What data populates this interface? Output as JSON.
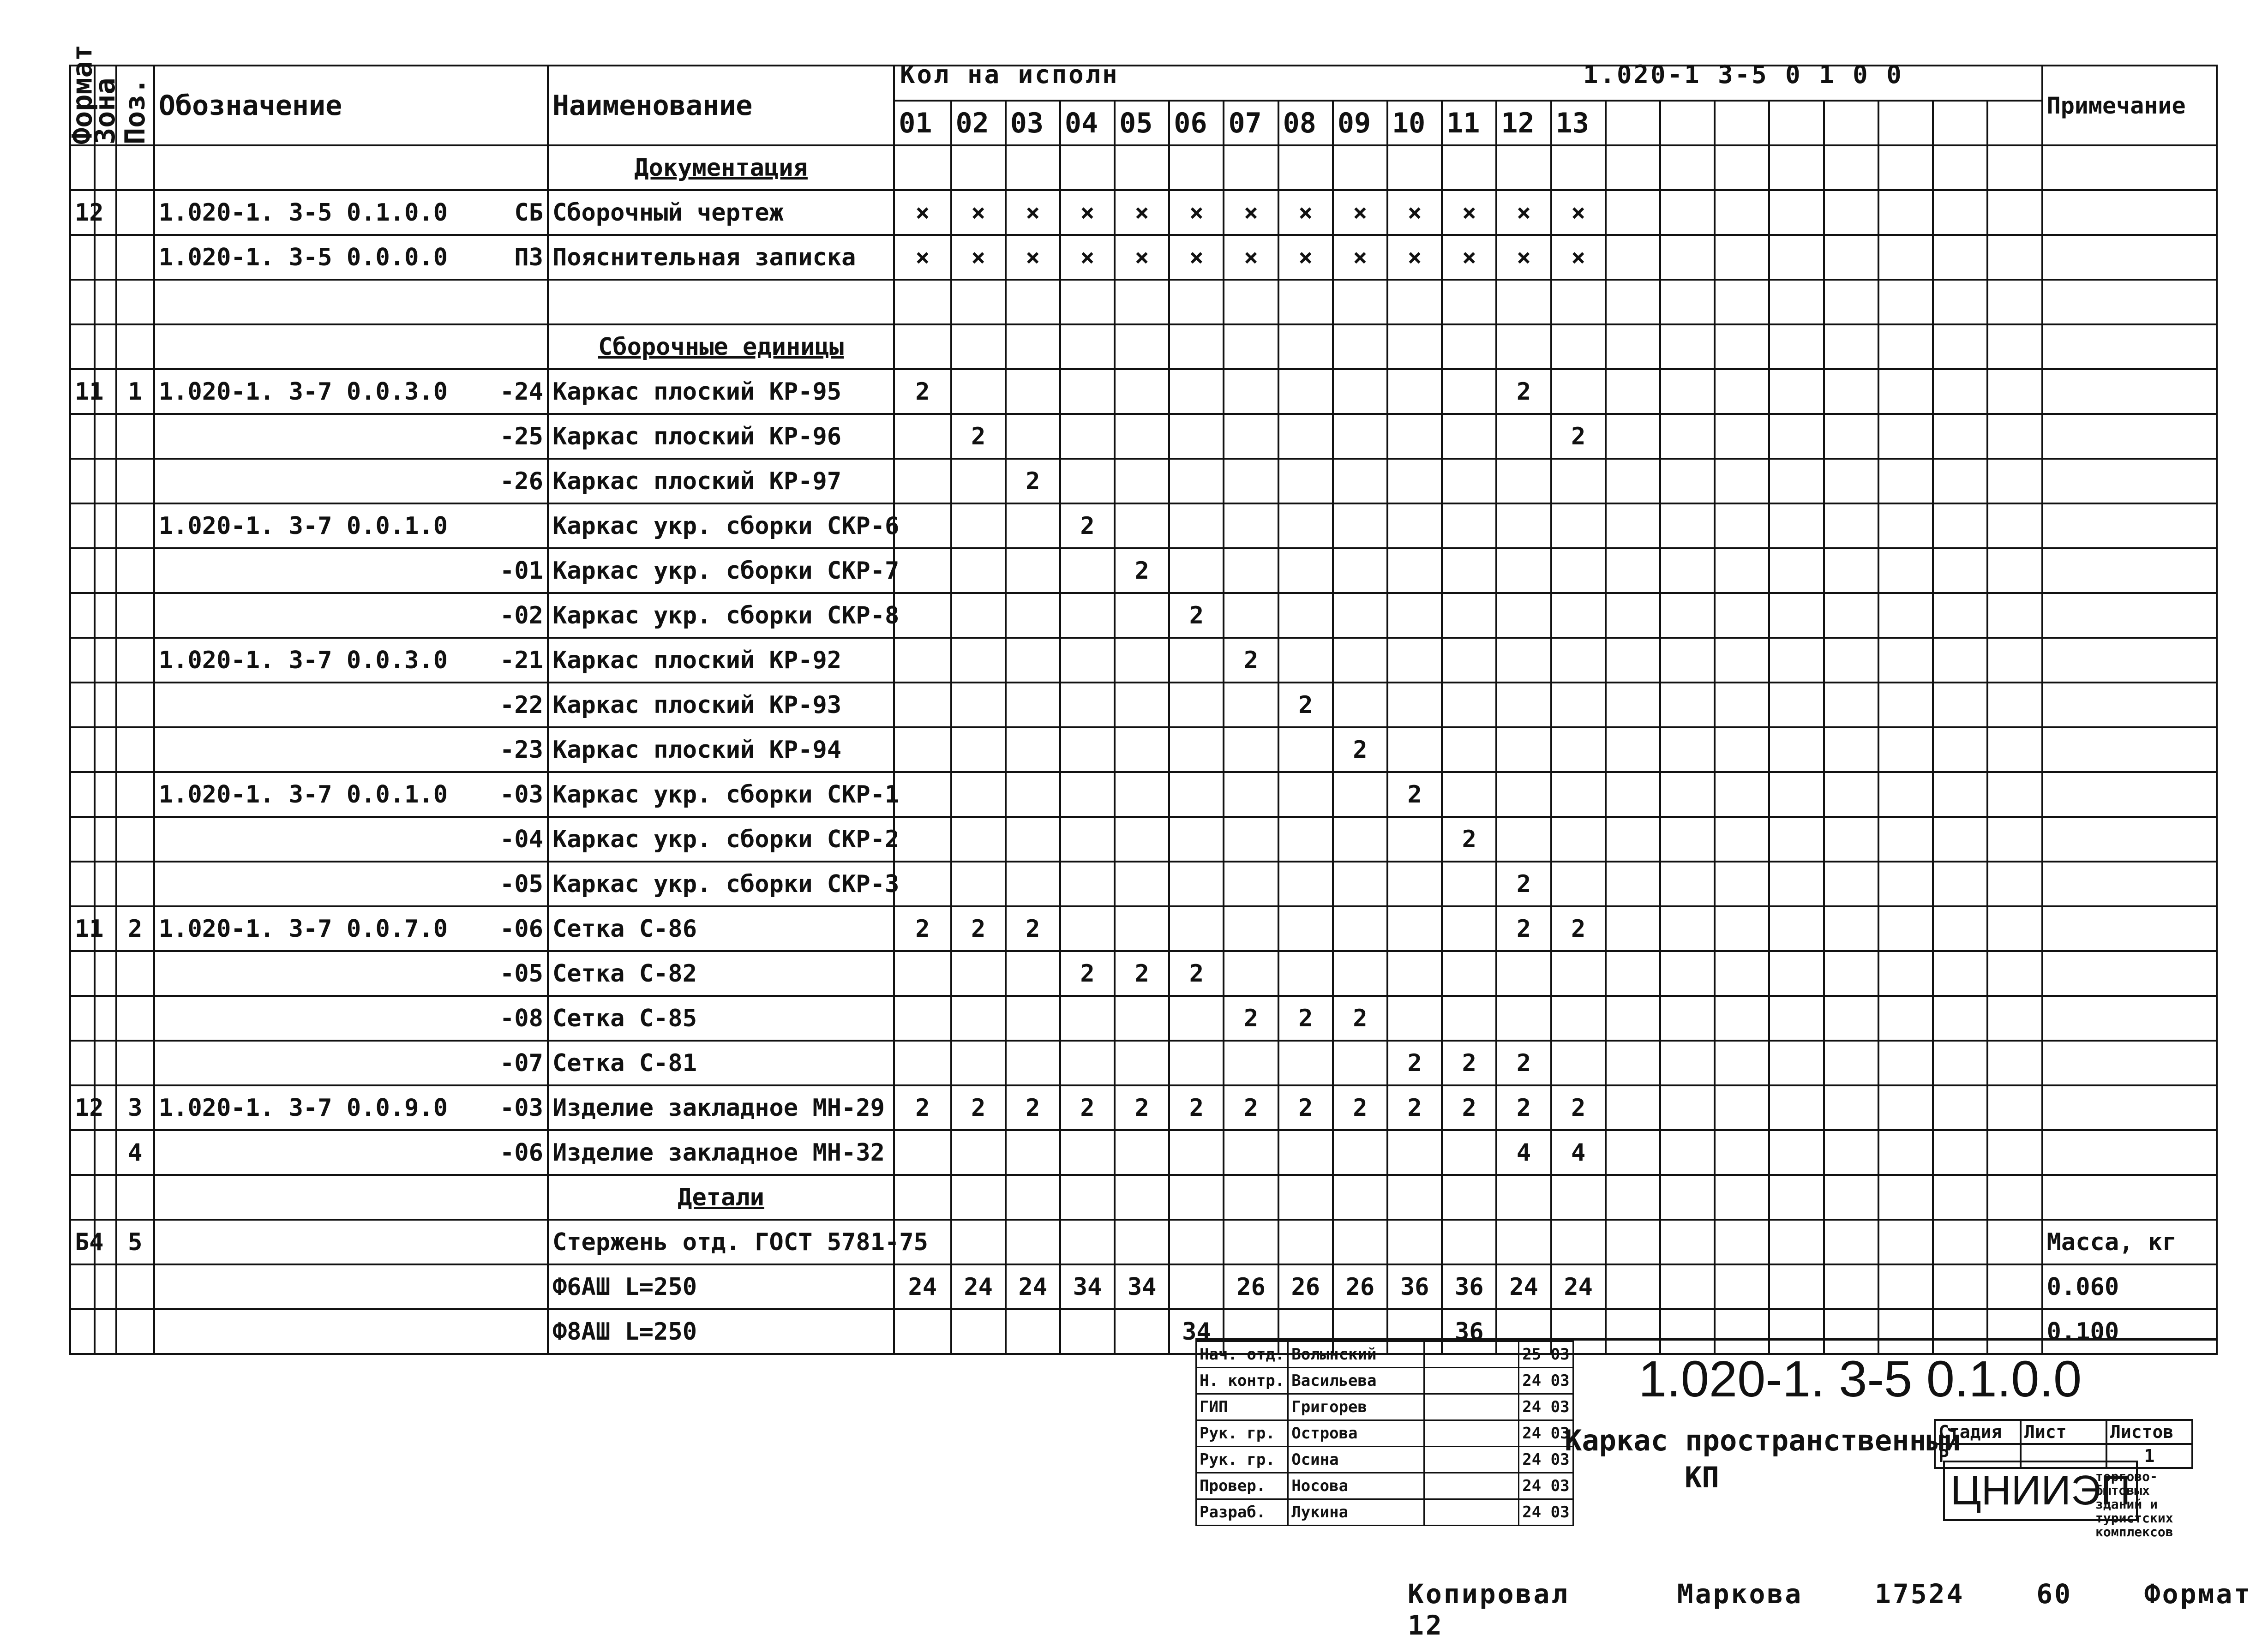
{
  "header": {
    "format_col": "Формат",
    "zone_col": "Зона",
    "pos_col": "Поз.",
    "designation": "Обозначение",
    "name": "Наименование",
    "qty_top": "Кол на исполн",
    "doc_code_top": "1.020-1 3-5 0 1 0 0",
    "note": "Примечание",
    "variants": [
      "01",
      "02",
      "03",
      "04",
      "05",
      "06",
      "07",
      "08",
      "09",
      "10",
      "11",
      "12",
      "13"
    ]
  },
  "rows": [
    {
      "fmt": "",
      "pos": "",
      "des": "",
      "suffix": "",
      "name": "Документация",
      "section": true,
      "q": []
    },
    {
      "fmt": "12",
      "pos": "",
      "des": "1.020-1. 3-5 0.1.0.0",
      "suffix": "СБ",
      "name": "Сборочный чертеж",
      "section": false,
      "q": [
        "×",
        "×",
        "×",
        "×",
        "×",
        "×",
        "×",
        "×",
        "×",
        "×",
        "×",
        "×",
        "×"
      ],
      "note": ""
    },
    {
      "fmt": "",
      "pos": "",
      "des": "1.020-1. 3-5 0.0.0.0",
      "suffix": "ПЗ",
      "name": "Пояснительная записка",
      "section": false,
      "q": [
        "×",
        "×",
        "×",
        "×",
        "×",
        "×",
        "×",
        "×",
        "×",
        "×",
        "×",
        "×",
        "×"
      ],
      "note": ""
    },
    {
      "fmt": "",
      "pos": "",
      "des": "",
      "suffix": "",
      "name": "",
      "section": false,
      "q": [],
      "note": ""
    },
    {
      "fmt": "",
      "pos": "",
      "des": "",
      "suffix": "",
      "name": "Сборочные единицы",
      "section": true,
      "q": []
    },
    {
      "fmt": "11",
      "pos": "1",
      "des": "1.020-1. 3-7 0.0.3.0",
      "suffix": "-24",
      "name": "Каркас плоский КР-95",
      "section": false,
      "q": [
        "2",
        "",
        "",
        "",
        "",
        "",
        "",
        "",
        "",
        "",
        "",
        "2",
        ""
      ],
      "note": ""
    },
    {
      "fmt": "",
      "pos": "",
      "des": "",
      "suffix": "-25",
      "name": "Каркас плоский КР-96",
      "section": false,
      "q": [
        "",
        "2",
        "",
        "",
        "",
        "",
        "",
        "",
        "",
        "",
        "",
        "",
        "2"
      ],
      "note": ""
    },
    {
      "fmt": "",
      "pos": "",
      "des": "",
      "suffix": "-26",
      "name": "Каркас плоский КР-97",
      "section": false,
      "q": [
        "",
        "",
        "2",
        "",
        "",
        "",
        "",
        "",
        "",
        "",
        "",
        "",
        ""
      ],
      "note": ""
    },
    {
      "fmt": "",
      "pos": "",
      "des": "1.020-1. 3-7 0.0.1.0",
      "suffix": "",
      "name": "Каркас укр. сборки СКР-6",
      "section": false,
      "q": [
        "",
        "",
        "",
        "2",
        "",
        "",
        "",
        "",
        "",
        "",
        "",
        "",
        ""
      ],
      "note": ""
    },
    {
      "fmt": "",
      "pos": "",
      "des": "",
      "suffix": "-01",
      "name": "Каркас укр. сборки СКР-7",
      "section": false,
      "q": [
        "",
        "",
        "",
        "",
        "2",
        "",
        "",
        "",
        "",
        "",
        "",
        "",
        ""
      ],
      "note": ""
    },
    {
      "fmt": "",
      "pos": "",
      "des": "",
      "suffix": "-02",
      "name": "Каркас укр. сборки СКР-8",
      "section": false,
      "q": [
        "",
        "",
        "",
        "",
        "",
        "2",
        "",
        "",
        "",
        "",
        "",
        "",
        ""
      ],
      "note": ""
    },
    {
      "fmt": "",
      "pos": "",
      "des": "1.020-1. 3-7 0.0.3.0",
      "suffix": "-21",
      "name": "Каркас плоский КР-92",
      "section": false,
      "q": [
        "",
        "",
        "",
        "",
        "",
        "",
        "2",
        "",
        "",
        "",
        "",
        "",
        ""
      ],
      "note": ""
    },
    {
      "fmt": "",
      "pos": "",
      "des": "",
      "suffix": "-22",
      "name": "Каркас плоский КР-93",
      "section": false,
      "q": [
        "",
        "",
        "",
        "",
        "",
        "",
        "",
        "2",
        "",
        "",
        "",
        "",
        ""
      ],
      "note": ""
    },
    {
      "fmt": "",
      "pos": "",
      "des": "",
      "suffix": "-23",
      "name": "Каркас плоский КР-94",
      "section": false,
      "q": [
        "",
        "",
        "",
        "",
        "",
        "",
        "",
        "",
        "2",
        "",
        "",
        "",
        ""
      ],
      "note": ""
    },
    {
      "fmt": "",
      "pos": "",
      "des": "1.020-1. 3-7 0.0.1.0",
      "suffix": "-03",
      "name": "Каркас укр. сборки СКР-1",
      "section": false,
      "q": [
        "",
        "",
        "",
        "",
        "",
        "",
        "",
        "",
        "",
        "2",
        "",
        "",
        ""
      ],
      "note": ""
    },
    {
      "fmt": "",
      "pos": "",
      "des": "",
      "suffix": "-04",
      "name": "Каркас укр. сборки СКР-2",
      "section": false,
      "q": [
        "",
        "",
        "",
        "",
        "",
        "",
        "",
        "",
        "",
        "",
        "2",
        "",
        ""
      ],
      "note": ""
    },
    {
      "fmt": "",
      "pos": "",
      "des": "",
      "suffix": "-05",
      "name": "Каркас укр. сборки СКР-3",
      "section": false,
      "q": [
        "",
        "",
        "",
        "",
        "",
        "",
        "",
        "",
        "",
        "",
        "",
        "2",
        ""
      ],
      "note": ""
    },
    {
      "fmt": "11",
      "pos": "2",
      "des": "1.020-1. 3-7 0.0.7.0",
      "suffix": "-06",
      "name": "Сетка С-86",
      "section": false,
      "q": [
        "2",
        "2",
        "2",
        "",
        "",
        "",
        "",
        "",
        "",
        "",
        "",
        "2",
        "2"
      ],
      "note": ""
    },
    {
      "fmt": "",
      "pos": "",
      "des": "",
      "suffix": "-05",
      "name": "Сетка С-82",
      "section": false,
      "q": [
        "",
        "",
        "",
        "2",
        "2",
        "2",
        "",
        "",
        "",
        "",
        "",
        "",
        ""
      ],
      "note": ""
    },
    {
      "fmt": "",
      "pos": "",
      "des": "",
      "suffix": "-08",
      "name": "Сетка С-85",
      "section": false,
      "q": [
        "",
        "",
        "",
        "",
        "",
        "",
        "2",
        "2",
        "2",
        "",
        "",
        "",
        ""
      ],
      "note": ""
    },
    {
      "fmt": "",
      "pos": "",
      "des": "",
      "suffix": "-07",
      "name": "Сетка С-81",
      "section": false,
      "q": [
        "",
        "",
        "",
        "",
        "",
        "",
        "",
        "",
        "",
        "2",
        "2",
        "2",
        ""
      ],
      "note": ""
    },
    {
      "fmt": "12",
      "pos": "3",
      "des": "1.020-1. 3-7 0.0.9.0",
      "suffix": "-03",
      "name": "Изделие закладное МН-29",
      "section": false,
      "q": [
        "2",
        "2",
        "2",
        "2",
        "2",
        "2",
        "2",
        "2",
        "2",
        "2",
        "2",
        "2",
        "2"
      ],
      "note": ""
    },
    {
      "fmt": "",
      "pos": "4",
      "des": "",
      "suffix": "-06",
      "name": "Изделие закладное МН-32",
      "section": false,
      "q": [
        "",
        "",
        "",
        "",
        "",
        "",
        "",
        "",
        "",
        "",
        "",
        "4",
        "4"
      ],
      "note": ""
    },
    {
      "fmt": "",
      "pos": "",
      "des": "",
      "suffix": "",
      "name": "Детали",
      "section": true,
      "q": []
    },
    {
      "fmt": "Б4",
      "pos": "5",
      "des": "",
      "suffix": "",
      "name": "Стержень отд. ГОСТ 5781-75",
      "section": false,
      "q": [],
      "note": "Масса, кг"
    },
    {
      "fmt": "",
      "pos": "",
      "des": "",
      "suffix": "",
      "name": "Ф6АШ L=250",
      "section": false,
      "q": [
        "24",
        "24",
        "24",
        "34",
        "34",
        "",
        "26",
        "26",
        "26",
        "36",
        "36",
        "24",
        "24"
      ],
      "note": "0.060"
    },
    {
      "fmt": "",
      "pos": "",
      "des": "",
      "suffix": "",
      "name": "Ф8АШ L=250",
      "section": false,
      "q": [
        "",
        "",
        "",
        "",
        "",
        "34",
        "",
        "",
        "",
        "",
        "36",
        "",
        ""
      ],
      "note": "0.100"
    }
  ],
  "title_block": {
    "code": "1.020-1. 3-5 0.1.0.0",
    "title_line1": "Каркас пространственный",
    "title_line2": "КП",
    "org": "ЦНИИЭП",
    "org_desc": "торгово-бытовых зданий и туристских комплексов",
    "stage_label": "Стадия",
    "sheet_label": "Лист",
    "sheets_label": "Листов",
    "stage": "Р",
    "sheets": "1",
    "signatures": [
      {
        "role": "Нач. отд.",
        "name": "Волынский",
        "date": "25 03"
      },
      {
        "role": "Н. контр.",
        "name": "Васильева",
        "date": "24 03"
      },
      {
        "role": "ГИП",
        "name": "Григорев",
        "date": "24 03"
      },
      {
        "role": "Рук. гр.",
        "name": "Острова",
        "date": "24 03"
      },
      {
        "role": "Рук. гр.",
        "name": "Осина",
        "date": "24 03"
      },
      {
        "role": "Провер.",
        "name": "Носова",
        "date": "24 03"
      },
      {
        "role": "Разраб.",
        "name": "Лукина",
        "date": "24 03"
      }
    ]
  },
  "footer": {
    "copied": "Копировал",
    "copier": "Маркова",
    "number": "17524",
    "sheet_num": "60",
    "format_label": "Формат",
    "format": "12"
  }
}
